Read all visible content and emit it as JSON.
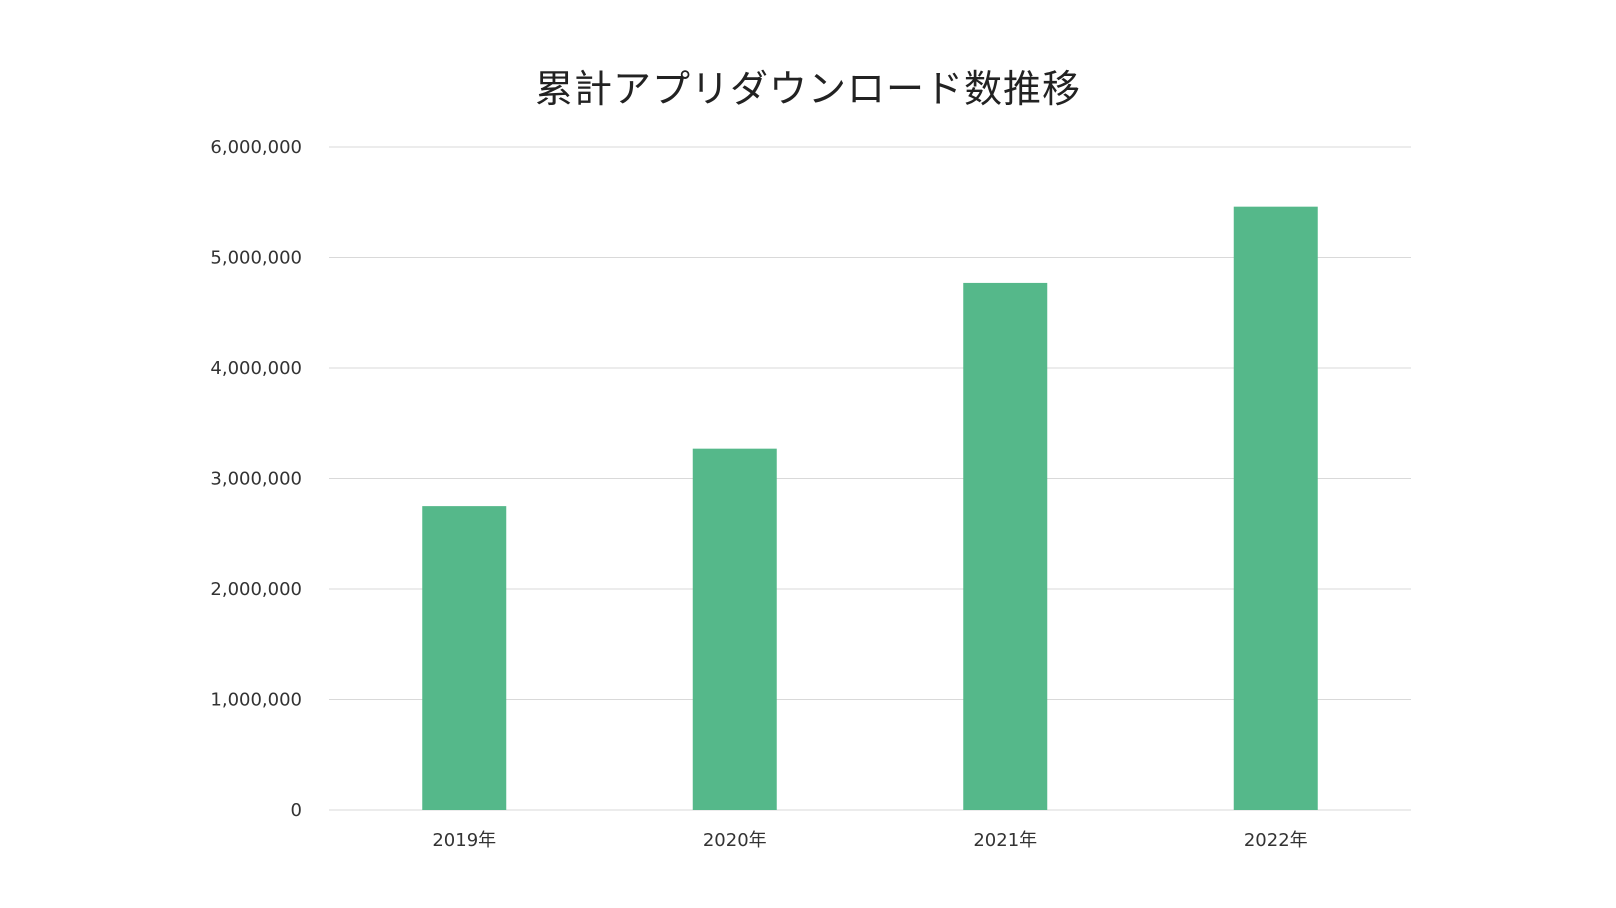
{
  "chart_data": {
    "type": "bar",
    "title": "累計アプリダウンロード数推移",
    "xlabel": "",
    "ylabel": "",
    "categories": [
      "2019年",
      "2020年",
      "2021年",
      "2022年"
    ],
    "values": [
      2750000,
      3270000,
      4770000,
      5460000
    ],
    "ylim": [
      0,
      6000000
    ],
    "yticks": [
      "0",
      "1,000,000",
      "2,000,000",
      "3,000,000",
      "4,000,000",
      "5,000,000",
      "6,000,000"
    ],
    "ytick_values": [
      0,
      1000000,
      2000000,
      3000000,
      4000000,
      5000000,
      6000000
    ],
    "grid": true,
    "legend": "none",
    "bar_color": "#55b88a"
  }
}
